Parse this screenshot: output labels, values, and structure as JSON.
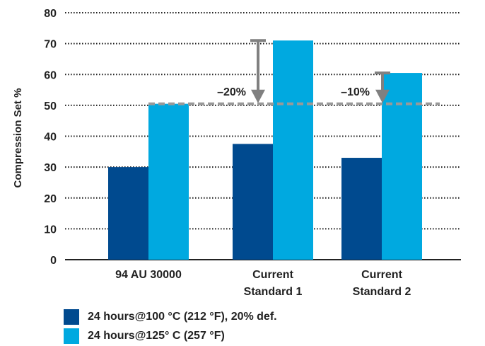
{
  "chart_data": {
    "type": "bar",
    "categories": [
      [
        "94 AU 30000"
      ],
      [
        "Current",
        "Standard 1"
      ],
      [
        "Current",
        "Standard 2"
      ]
    ],
    "series": [
      {
        "name": "24 hours@100 °C (212 °F), 20% def.",
        "color": "#004a8f",
        "values": [
          30,
          37.5,
          33
        ]
      },
      {
        "name": "24 hours@125° C (257 °F)",
        "color": "#00a9e0",
        "values": [
          50.5,
          71,
          60.5
        ]
      }
    ],
    "ylabel": "Compression Set %",
    "ylim": [
      0,
      80
    ],
    "yticks": [
      0,
      10,
      20,
      30,
      40,
      50,
      60,
      70,
      80
    ],
    "grid": "horizontal dotted",
    "legend": "bottom-left",
    "reference_line": {
      "value": 50.5,
      "style": "dashed",
      "color": "#999999"
    },
    "annotations": [
      {
        "text": "–20%",
        "category": 1,
        "from": 71,
        "to": 50.5
      },
      {
        "text": "–10%",
        "category": 2,
        "from": 60.5,
        "to": 50.5
      }
    ]
  }
}
